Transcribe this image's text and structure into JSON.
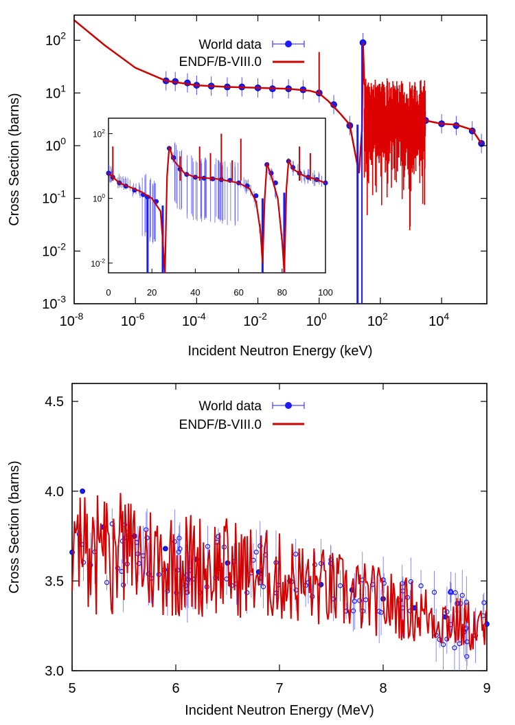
{
  "chart_data": [
    {
      "id": "top",
      "type": "scatter",
      "title": "",
      "xlabel": "Incident Neutron Energy (keV)",
      "ylabel": "Cross Section (barns)",
      "xscale": "log",
      "yscale": "log",
      "xlim": [
        1e-08,
        300000.0
      ],
      "ylim": [
        0.001,
        300
      ],
      "x_ticks": [
        {
          "v": 1e-08,
          "base": "10",
          "exp": "-8"
        },
        {
          "v": 1e-06,
          "base": "10",
          "exp": "-6"
        },
        {
          "v": 0.0001,
          "base": "10",
          "exp": "-4"
        },
        {
          "v": 0.01,
          "base": "10",
          "exp": "-2"
        },
        {
          "v": 1,
          "base": "10",
          "exp": "0"
        },
        {
          "v": 100,
          "base": "10",
          "exp": "2"
        },
        {
          "v": 10000,
          "base": "10",
          "exp": "4"
        }
      ],
      "y_ticks": [
        {
          "v": 0.001,
          "base": "10",
          "exp": "-3"
        },
        {
          "v": 0.01,
          "base": "10",
          "exp": "-2"
        },
        {
          "v": 0.1,
          "base": "10",
          "exp": "-1"
        },
        {
          "v": 1,
          "base": "10",
          "exp": "0"
        },
        {
          "v": 10,
          "base": "10",
          "exp": "1"
        },
        {
          "v": 100,
          "base": "10",
          "exp": "2"
        }
      ],
      "legend": {
        "placement": "top-center",
        "entries": [
          "World data",
          "ENDF/B-VIII.0"
        ]
      },
      "grid": false,
      "series": [
        {
          "name": "ENDF/B-VIII.0",
          "kind": "line",
          "color": "#cc0000",
          "x": [
            1e-08,
            1e-07,
            1e-06,
            1e-05,
            0.0001,
            0.001,
            0.01,
            0.1,
            0.5,
            1,
            2,
            5,
            10,
            20,
            25,
            27,
            30,
            50,
            100,
            300,
            1000,
            3000,
            10000,
            30000,
            100000,
            200000
          ],
          "y": [
            240,
            80,
            30,
            17,
            14,
            13,
            12.5,
            12,
            11,
            9.8,
            7,
            4,
            2.5,
            0.3,
            2,
            90,
            15,
            8,
            5,
            3,
            4,
            3,
            2.6,
            2.5,
            2.0,
            1.1
          ]
        },
        {
          "name": "World data",
          "kind": "points",
          "color": "#1a1aff",
          "x": [
            1e-05,
            2e-05,
            5e-05,
            0.0001,
            0.0003,
            0.001,
            0.003,
            0.01,
            0.03,
            0.1,
            0.3,
            1,
            3,
            10,
            27,
            60,
            100,
            200,
            400,
            1000,
            3000,
            10000,
            30000,
            100000,
            200000
          ],
          "y": [
            17,
            16.5,
            15.5,
            14,
            13.5,
            13,
            13,
            12.5,
            12,
            12,
            11.5,
            10,
            6,
            2.4,
            90,
            7,
            4,
            3,
            3.5,
            3.8,
            3,
            2.6,
            2.4,
            1.9,
            1.1
          ]
        }
      ],
      "inset": {
        "type": "line",
        "xlim": [
          0,
          100
        ],
        "ylim": [
          0.005,
          300
        ],
        "yscale": "log",
        "x_ticks": [
          0,
          20,
          40,
          60,
          80,
          100
        ],
        "y_ticks": [
          {
            "v": 0.01,
            "base": "10",
            "exp": "-2"
          },
          {
            "v": 1,
            "base": "10",
            "exp": "0"
          },
          {
            "v": 100,
            "base": "10",
            "exp": "2"
          }
        ],
        "series": [
          {
            "name": "ENDF/B-VIII.0",
            "kind": "line",
            "color": "#cc0000",
            "x": [
              0,
              5,
              10,
              15,
              20,
              24,
              25,
              26,
              27,
              28,
              30,
              35,
              40,
              50,
              60,
              65,
              68,
              70,
              71,
              72,
              73,
              75,
              78,
              80,
              81,
              82,
              83,
              85,
              90,
              95,
              100
            ],
            "y": [
              6,
              3,
              2.2,
              1.6,
              1.0,
              0.4,
              0.05,
              0.005,
              5,
              40,
              15,
              6,
              4.5,
              4,
              3,
              2,
              0.8,
              0.1,
              0.01,
              1,
              12,
              5,
              1,
              0.05,
              0.005,
              2,
              15,
              8,
              5,
              4,
              3
            ]
          },
          {
            "name": "World data",
            "kind": "points",
            "color": "#1a1aff",
            "x": [
              0,
              2,
              5,
              8,
              12,
              16,
              18,
              22,
              28,
              30,
              33,
              36,
              40,
              44,
              48,
              52,
              56,
              60,
              64,
              68,
              73,
              75,
              77,
              83,
              85,
              88,
              92,
              96,
              100
            ],
            "y": [
              6,
              4.5,
              3,
              2.4,
              1.8,
              1.3,
              1.1,
              0.8,
              35,
              18,
              8,
              5.5,
              4.5,
              4.2,
              4,
              3.8,
              3.6,
              3,
              2.4,
              1.2,
              11,
              6,
              3,
              14,
              9,
              6,
              4.5,
              3.8,
              3
            ]
          }
        ]
      }
    },
    {
      "id": "bottom",
      "type": "scatter",
      "title": "",
      "xlabel": "Incident Neutron Energy (MeV)",
      "ylabel": "Cross Section (barns)",
      "xlim": [
        5,
        9
      ],
      "ylim": [
        3.0,
        4.6
      ],
      "x_ticks": [
        "5",
        "6",
        "7",
        "8",
        "9"
      ],
      "y_ticks": [
        "3.0",
        "3.5",
        "4.0",
        "4.5"
      ],
      "legend": {
        "placement": "top-center",
        "entries": [
          "World data",
          "ENDF/B-VIII.0"
        ]
      },
      "grid": false,
      "series": [
        {
          "name": "ENDF/B-VIII.0",
          "kind": "line",
          "color": "#cc0000",
          "x": [
            5.0,
            5.5,
            6.0,
            6.5,
            7.0,
            7.5,
            8.0,
            8.5,
            9.0
          ],
          "y": [
            3.65,
            3.65,
            3.6,
            3.58,
            3.52,
            3.45,
            3.38,
            3.3,
            3.22
          ]
        },
        {
          "name": "World data",
          "kind": "points",
          "color": "#1a1aff",
          "x": [
            5.0,
            5.1,
            5.3,
            5.6,
            5.9,
            6.2,
            6.5,
            6.8,
            7.1,
            7.4,
            7.7,
            8.0,
            8.3,
            8.6,
            9.0
          ],
          "y": [
            3.66,
            4.0,
            3.8,
            3.75,
            3.68,
            3.62,
            3.6,
            3.55,
            3.5,
            3.48,
            3.45,
            3.4,
            3.35,
            3.3,
            3.26
          ]
        }
      ]
    }
  ]
}
